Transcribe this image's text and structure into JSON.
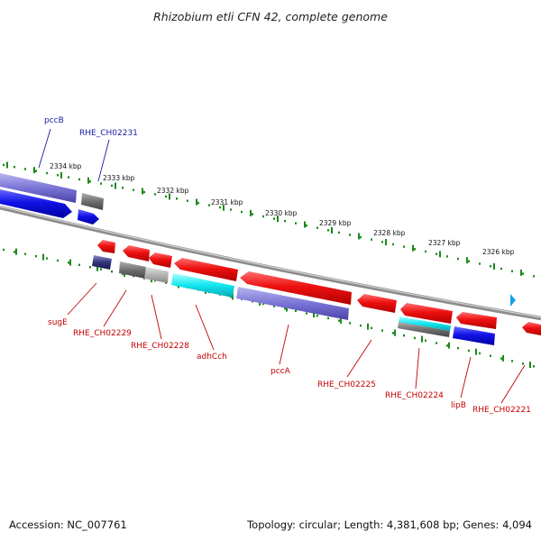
{
  "title": "Rhizobium etli CFN 42, complete genome",
  "footer": {
    "accession": "Accession: NC_007761",
    "summary": "Topology: circular; Length: 4,381,608 bp; Genes: 4,094"
  },
  "scale_labels": [
    "2334 kbp",
    "2333 kbp",
    "2332 kbp",
    "2331 kbp",
    "2330 kbp",
    "2329 kbp",
    "2328 kbp",
    "2327 kbp",
    "2326 kbp"
  ],
  "gene_labels_top": [
    "pccB",
    "RHE_CH02231"
  ],
  "gene_labels_bottom": [
    "sugE",
    "RHE_CH02229",
    "RHE_CH02228",
    "adhCch",
    "pccA",
    "RHE_CH02225",
    "RHE_CH02224",
    "lipB",
    "RHE_CH02221"
  ],
  "colors": {
    "gene_red": "#ee1010",
    "gene_blue": "#1212e6",
    "gene_violet": "#7a74d6",
    "gene_cyan": "#10e6f0",
    "gene_gray": "#6f6f6f",
    "backbone": "#8c8c8c",
    "scale_dots": "#1a8a1a",
    "label_blue": "#1a1aa8",
    "label_red": "#c40000"
  }
}
